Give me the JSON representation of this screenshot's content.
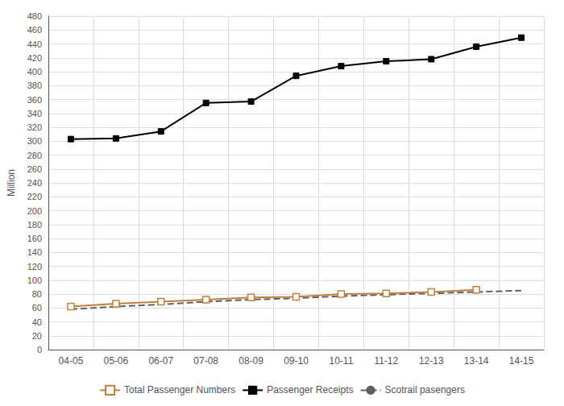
{
  "chart_data": {
    "type": "line",
    "ylabel": "Million",
    "categories": [
      "04-05",
      "05-06",
      "06-07",
      "07-08",
      "08-09",
      "09-10",
      "10-11",
      "11-12",
      "12-13",
      "13-14",
      "14-15"
    ],
    "series": [
      {
        "name": "Total Passenger Numbers",
        "color": "#C0813C",
        "marker": "open_square",
        "line_style": "solid",
        "values": [
          62,
          66,
          69,
          72,
          75,
          76,
          80,
          81,
          83,
          86,
          null
        ]
      },
      {
        "name": "Passenger Receipts",
        "color": "#000000",
        "marker": "square",
        "line_style": "solid",
        "values": [
          303,
          304,
          314,
          355,
          357,
          394,
          408,
          415,
          418,
          436,
          449
        ]
      },
      {
        "name": "Scotrail pasengers",
        "color": "#606060",
        "marker": "none",
        "line_style": "dashed",
        "values": [
          58,
          62,
          65,
          69,
          72,
          74,
          77,
          79,
          81,
          83,
          85
        ]
      }
    ],
    "ylim": [
      0,
      480
    ],
    "yticks": [
      0,
      20,
      40,
      60,
      80,
      100,
      120,
      140,
      160,
      180,
      200,
      220,
      240,
      260,
      280,
      300,
      320,
      340,
      360,
      380,
      400,
      420,
      440,
      460,
      480
    ],
    "grid": true,
    "legend": "bottom"
  }
}
